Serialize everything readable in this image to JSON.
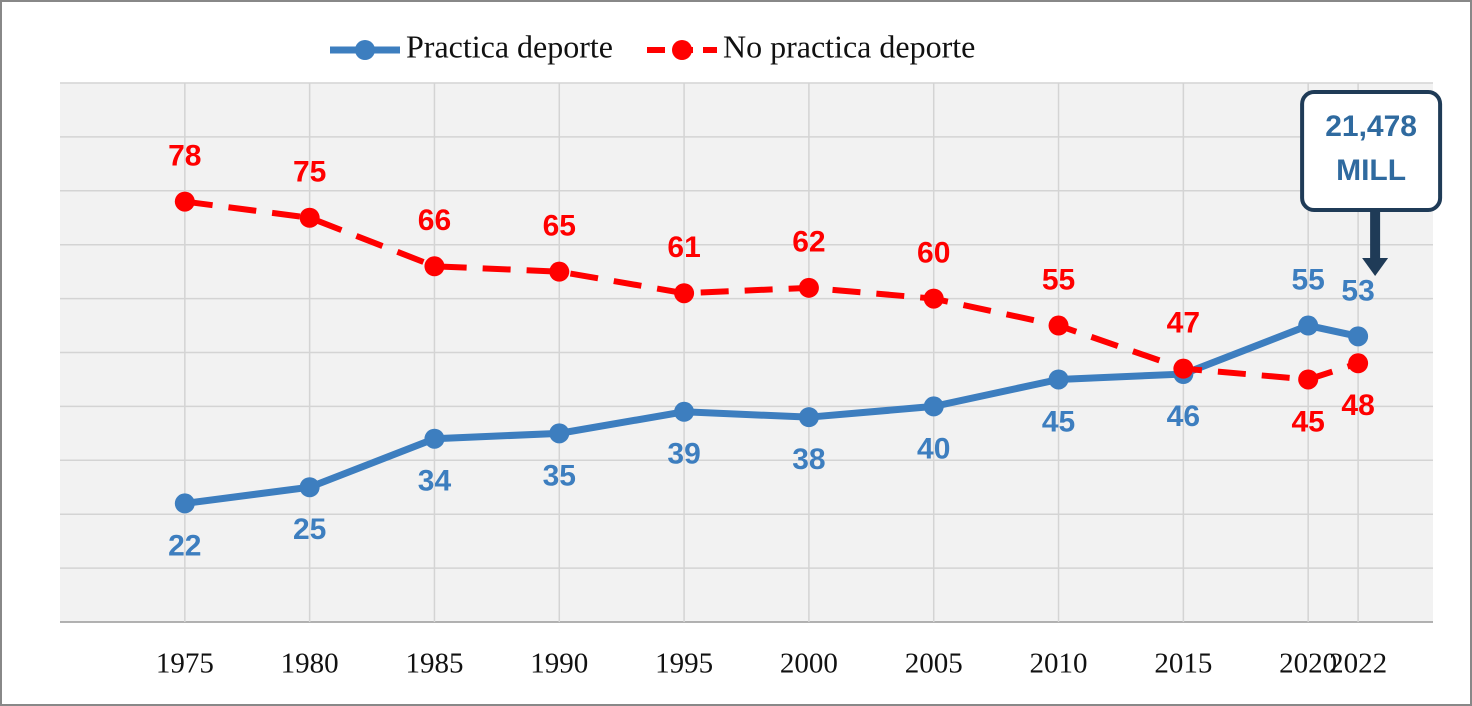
{
  "chart_data": {
    "type": "line",
    "x": [
      1975,
      1980,
      1985,
      1990,
      1995,
      2000,
      2005,
      2010,
      2015,
      2020,
      2022
    ],
    "series": [
      {
        "name": "Practica deporte",
        "color": "#3d7ebf",
        "values": [
          22,
          25,
          34,
          35,
          39,
          38,
          40,
          45,
          46,
          55,
          53
        ]
      },
      {
        "name": "No practica deporte",
        "color": "#ff0000",
        "values": [
          78,
          75,
          66,
          65,
          61,
          62,
          60,
          55,
          47,
          45,
          48
        ]
      }
    ],
    "xlim": [
      1970,
      2025
    ],
    "xticks": [
      1975,
      1980,
      1985,
      1990,
      1995,
      2000,
      2005,
      2010,
      2015,
      2020,
      2022
    ],
    "ylim": [
      0,
      100
    ],
    "yticks": [
      0,
      10,
      20,
      30,
      40,
      50,
      60,
      70,
      80,
      90,
      100
    ],
    "grid": true,
    "legend": "top",
    "annotation": [
      "21,478",
      "MILL"
    ]
  }
}
